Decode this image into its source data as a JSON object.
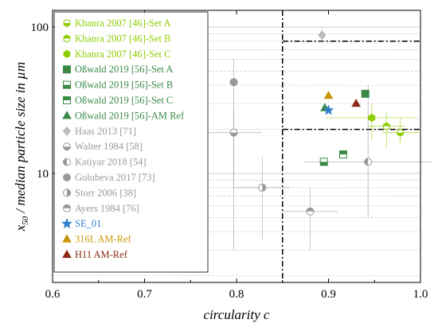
{
  "chart_data": {
    "type": "scatter",
    "xlabel": "circularity c",
    "ylabel_main": "x",
    "ylabel_sub": "50",
    "ylabel_rest": " / median particle size in µm",
    "xlim": [
      0.6,
      1.0
    ],
    "ylim": [
      1.8,
      130
    ],
    "y_scale": "log",
    "x_ticks": [
      0.6,
      0.7,
      0.8,
      0.9,
      1.0
    ],
    "x_tick_labels": [
      "0.6",
      "0.7",
      "0.8",
      "0.9",
      "1.0"
    ],
    "y_ticks": [
      10,
      100
    ],
    "y_tick_labels": [
      "10",
      "100"
    ],
    "reference_lines": {
      "vertical_x": 0.85,
      "horizontal_y": [
        80,
        20
      ]
    },
    "legend_position": "top-left",
    "series": [
      {
        "name": "Khanra 2007 [46]-Set A",
        "color": "#8fce00",
        "marker": "hexagon",
        "fill": "half-bottom",
        "points": [
          {
            "x": 0.978,
            "y": 19,
            "xerr": 0.02,
            "yerr": [
              16,
              24
            ]
          }
        ]
      },
      {
        "name": "Khanra 2007 [46]-Set B",
        "color": "#8fce00",
        "marker": "hexagon",
        "fill": "half-top",
        "points": [
          {
            "x": 0.963,
            "y": 21,
            "xerr": 0.02,
            "yerr": [
              15,
              26
            ]
          }
        ]
      },
      {
        "name": "Khanra 2007 [46]-Set C",
        "color": "#8fce00",
        "marker": "hexagon",
        "fill": "full",
        "points": [
          {
            "x": 0.947,
            "y": 24,
            "xerr": 0.05,
            "yerr": [
              17,
              30
            ]
          }
        ]
      },
      {
        "name": "Oßwald 2019 [56]-Set A",
        "color": "#3a8a46",
        "marker": "square",
        "fill": "full",
        "points": [
          {
            "x": 0.94,
            "y": 35
          }
        ]
      },
      {
        "name": "Oßwald 2019 [56]-Set B",
        "color": "#3a8a46",
        "marker": "square",
        "fill": "half-bottom",
        "points": [
          {
            "x": 0.895,
            "y": 12
          }
        ]
      },
      {
        "name": "Oßwald 2019 [56]-Set C",
        "color": "#3a8a46",
        "marker": "square",
        "fill": "half-top",
        "points": [
          {
            "x": 0.916,
            "y": 13.5
          }
        ]
      },
      {
        "name": "Oßwald 2019 [56]-AM Ref",
        "color": "#3a8a46",
        "marker": "triangle",
        "fill": "full",
        "points": [
          {
            "x": 0.896,
            "y": 28
          }
        ]
      },
      {
        "name": "Haas 2013 [71]",
        "color": "#bbbbbb",
        "marker": "diamond",
        "fill": "full",
        "points": [
          {
            "x": 0.893,
            "y": 88,
            "xerr": 0.002,
            "yerr": [
              75,
              100
            ]
          }
        ]
      },
      {
        "name": "Walter 1984 [58]",
        "color": "#999999",
        "marker": "circle",
        "fill": "half-bottom",
        "points": [
          {
            "x": 0.797,
            "y": 19,
            "xerr": 0.03,
            "yerr": [
              8,
              28
            ]
          }
        ]
      },
      {
        "name": "Katiyar 2018 [54]",
        "color": "#999999",
        "marker": "circle",
        "fill": "half-left",
        "points": [
          {
            "x": 0.943,
            "y": 12,
            "xerr": 0.07,
            "yerr": [
              5,
              40
            ]
          }
        ]
      },
      {
        "name": "Golubeva 2017 [73]",
        "color": "#999999",
        "marker": "circle",
        "fill": "full",
        "points": [
          {
            "x": 0.797,
            "y": 42,
            "xerr": 0.002,
            "yerr": [
              3,
              60
            ]
          }
        ]
      },
      {
        "name": "Storr 2006 [38]",
        "color": "#999999",
        "marker": "circle",
        "fill": "half-right",
        "points": [
          {
            "x": 0.828,
            "y": 8,
            "xerr": 0.03,
            "yerr": [
              3.5,
              13
            ]
          }
        ]
      },
      {
        "name": "Ayers 1984 [76]",
        "color": "#999999",
        "marker": "circle",
        "fill": "half-top",
        "points": [
          {
            "x": 0.88,
            "y": 5.5,
            "xerr": 0.03,
            "yerr": [
              3,
              8
            ]
          }
        ]
      },
      {
        "name": "SE_01",
        "color": "#2f7fce",
        "marker": "star",
        "fill": "full",
        "points": [
          {
            "x": 0.9,
            "y": 27
          }
        ]
      },
      {
        "name": "316L AM-Ref",
        "color": "#c89600",
        "marker": "triangle",
        "fill": "full",
        "points": [
          {
            "x": 0.9,
            "y": 34
          }
        ]
      },
      {
        "name": "H11 AM-Ref",
        "color": "#8b2a12",
        "marker": "triangle",
        "fill": "full",
        "points": [
          {
            "x": 0.93,
            "y": 30
          }
        ]
      }
    ]
  }
}
